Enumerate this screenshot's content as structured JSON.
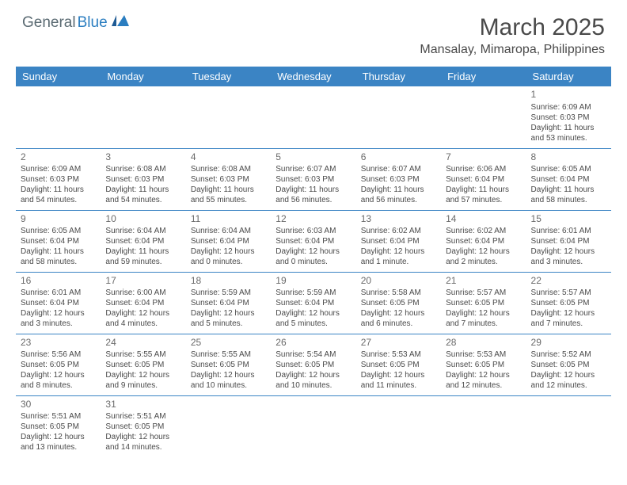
{
  "logo": {
    "part1": "General",
    "part2": "Blue"
  },
  "title": "March 2025",
  "location": "Mansalay, Mimaropa, Philippines",
  "colors": {
    "header_bg": "#3b84c4",
    "header_text": "#ffffff",
    "body_text": "#4a4a4a",
    "logo_gray": "#5a6a72",
    "logo_blue": "#2a7dc0",
    "rule": "#3b84c4",
    "background": "#ffffff"
  },
  "typography": {
    "title_fontsize": 30,
    "location_fontsize": 16,
    "dayheader_fontsize": 13,
    "cell_fontsize": 10,
    "daynum_fontsize": 12
  },
  "day_headers": [
    "Sunday",
    "Monday",
    "Tuesday",
    "Wednesday",
    "Thursday",
    "Friday",
    "Saturday"
  ],
  "weeks": [
    [
      null,
      null,
      null,
      null,
      null,
      null,
      {
        "n": "1",
        "sr": "Sunrise: 6:09 AM",
        "ss": "Sunset: 6:03 PM",
        "dl": "Daylight: 11 hours and 53 minutes."
      }
    ],
    [
      {
        "n": "2",
        "sr": "Sunrise: 6:09 AM",
        "ss": "Sunset: 6:03 PM",
        "dl": "Daylight: 11 hours and 54 minutes."
      },
      {
        "n": "3",
        "sr": "Sunrise: 6:08 AM",
        "ss": "Sunset: 6:03 PM",
        "dl": "Daylight: 11 hours and 54 minutes."
      },
      {
        "n": "4",
        "sr": "Sunrise: 6:08 AM",
        "ss": "Sunset: 6:03 PM",
        "dl": "Daylight: 11 hours and 55 minutes."
      },
      {
        "n": "5",
        "sr": "Sunrise: 6:07 AM",
        "ss": "Sunset: 6:03 PM",
        "dl": "Daylight: 11 hours and 56 minutes."
      },
      {
        "n": "6",
        "sr": "Sunrise: 6:07 AM",
        "ss": "Sunset: 6:03 PM",
        "dl": "Daylight: 11 hours and 56 minutes."
      },
      {
        "n": "7",
        "sr": "Sunrise: 6:06 AM",
        "ss": "Sunset: 6:04 PM",
        "dl": "Daylight: 11 hours and 57 minutes."
      },
      {
        "n": "8",
        "sr": "Sunrise: 6:05 AM",
        "ss": "Sunset: 6:04 PM",
        "dl": "Daylight: 11 hours and 58 minutes."
      }
    ],
    [
      {
        "n": "9",
        "sr": "Sunrise: 6:05 AM",
        "ss": "Sunset: 6:04 PM",
        "dl": "Daylight: 11 hours and 58 minutes."
      },
      {
        "n": "10",
        "sr": "Sunrise: 6:04 AM",
        "ss": "Sunset: 6:04 PM",
        "dl": "Daylight: 11 hours and 59 minutes."
      },
      {
        "n": "11",
        "sr": "Sunrise: 6:04 AM",
        "ss": "Sunset: 6:04 PM",
        "dl": "Daylight: 12 hours and 0 minutes."
      },
      {
        "n": "12",
        "sr": "Sunrise: 6:03 AM",
        "ss": "Sunset: 6:04 PM",
        "dl": "Daylight: 12 hours and 0 minutes."
      },
      {
        "n": "13",
        "sr": "Sunrise: 6:02 AM",
        "ss": "Sunset: 6:04 PM",
        "dl": "Daylight: 12 hours and 1 minute."
      },
      {
        "n": "14",
        "sr": "Sunrise: 6:02 AM",
        "ss": "Sunset: 6:04 PM",
        "dl": "Daylight: 12 hours and 2 minutes."
      },
      {
        "n": "15",
        "sr": "Sunrise: 6:01 AM",
        "ss": "Sunset: 6:04 PM",
        "dl": "Daylight: 12 hours and 3 minutes."
      }
    ],
    [
      {
        "n": "16",
        "sr": "Sunrise: 6:01 AM",
        "ss": "Sunset: 6:04 PM",
        "dl": "Daylight: 12 hours and 3 minutes."
      },
      {
        "n": "17",
        "sr": "Sunrise: 6:00 AM",
        "ss": "Sunset: 6:04 PM",
        "dl": "Daylight: 12 hours and 4 minutes."
      },
      {
        "n": "18",
        "sr": "Sunrise: 5:59 AM",
        "ss": "Sunset: 6:04 PM",
        "dl": "Daylight: 12 hours and 5 minutes."
      },
      {
        "n": "19",
        "sr": "Sunrise: 5:59 AM",
        "ss": "Sunset: 6:04 PM",
        "dl": "Daylight: 12 hours and 5 minutes."
      },
      {
        "n": "20",
        "sr": "Sunrise: 5:58 AM",
        "ss": "Sunset: 6:05 PM",
        "dl": "Daylight: 12 hours and 6 minutes."
      },
      {
        "n": "21",
        "sr": "Sunrise: 5:57 AM",
        "ss": "Sunset: 6:05 PM",
        "dl": "Daylight: 12 hours and 7 minutes."
      },
      {
        "n": "22",
        "sr": "Sunrise: 5:57 AM",
        "ss": "Sunset: 6:05 PM",
        "dl": "Daylight: 12 hours and 7 minutes."
      }
    ],
    [
      {
        "n": "23",
        "sr": "Sunrise: 5:56 AM",
        "ss": "Sunset: 6:05 PM",
        "dl": "Daylight: 12 hours and 8 minutes."
      },
      {
        "n": "24",
        "sr": "Sunrise: 5:55 AM",
        "ss": "Sunset: 6:05 PM",
        "dl": "Daylight: 12 hours and 9 minutes."
      },
      {
        "n": "25",
        "sr": "Sunrise: 5:55 AM",
        "ss": "Sunset: 6:05 PM",
        "dl": "Daylight: 12 hours and 10 minutes."
      },
      {
        "n": "26",
        "sr": "Sunrise: 5:54 AM",
        "ss": "Sunset: 6:05 PM",
        "dl": "Daylight: 12 hours and 10 minutes."
      },
      {
        "n": "27",
        "sr": "Sunrise: 5:53 AM",
        "ss": "Sunset: 6:05 PM",
        "dl": "Daylight: 12 hours and 11 minutes."
      },
      {
        "n": "28",
        "sr": "Sunrise: 5:53 AM",
        "ss": "Sunset: 6:05 PM",
        "dl": "Daylight: 12 hours and 12 minutes."
      },
      {
        "n": "29",
        "sr": "Sunrise: 5:52 AM",
        "ss": "Sunset: 6:05 PM",
        "dl": "Daylight: 12 hours and 12 minutes."
      }
    ],
    [
      {
        "n": "30",
        "sr": "Sunrise: 5:51 AM",
        "ss": "Sunset: 6:05 PM",
        "dl": "Daylight: 12 hours and 13 minutes."
      },
      {
        "n": "31",
        "sr": "Sunrise: 5:51 AM",
        "ss": "Sunset: 6:05 PM",
        "dl": "Daylight: 12 hours and 14 minutes."
      },
      null,
      null,
      null,
      null,
      null
    ]
  ]
}
